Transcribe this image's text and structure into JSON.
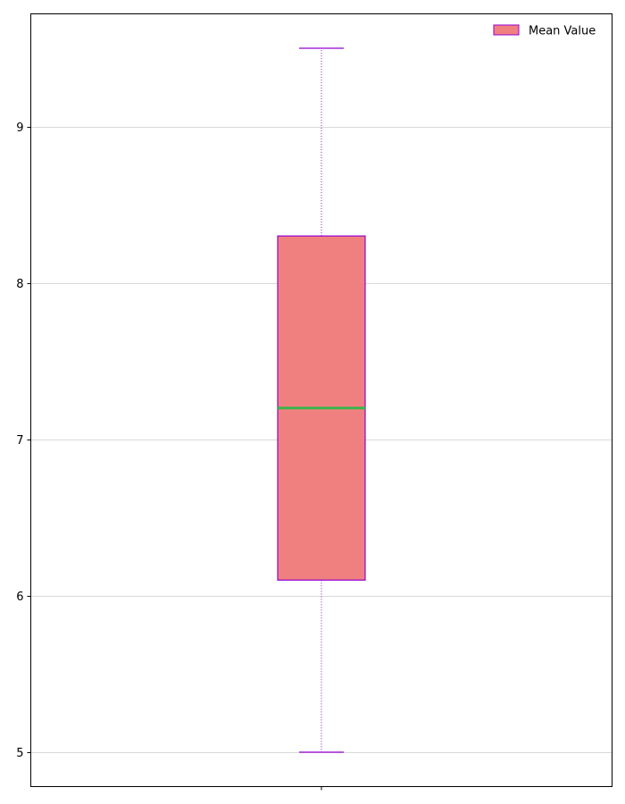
{
  "chart_data": {
    "type": "box",
    "title": "",
    "xlabel": "",
    "ylabel": "",
    "categories": [
      ""
    ],
    "series": [
      {
        "name": "Mean Value",
        "whisker_low": 5.0,
        "q1": 6.1,
        "median": 7.2,
        "q3": 8.3,
        "whisker_high": 9.5
      }
    ],
    "ylim": [
      4.78,
      9.72
    ],
    "yticks": [
      5,
      6,
      7,
      8,
      9
    ],
    "grid": "horizontal",
    "legend_position": "top-right",
    "colors": {
      "box_fill": "#f08080",
      "box_edge": "#9400d3",
      "median": "#3cb44b",
      "whisker": "#9400d3",
      "grid": "#d9d9d9",
      "axis": "#000000"
    }
  }
}
